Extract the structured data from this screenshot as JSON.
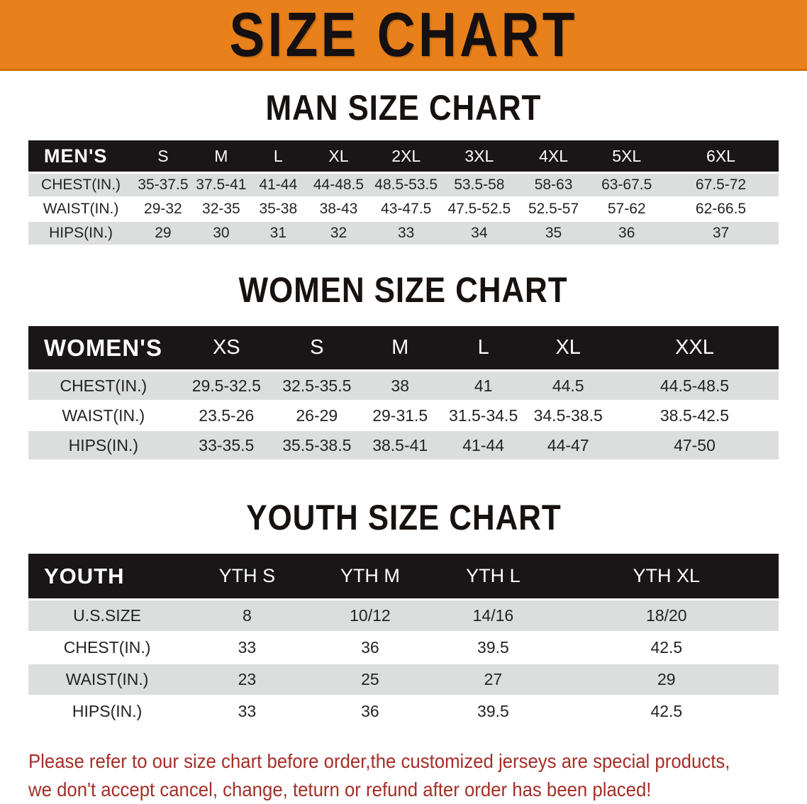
{
  "banner": {
    "title": "SIZE CHART",
    "bg_color": "#E8811B",
    "text_color": "#151011"
  },
  "charts": [
    {
      "id": "men",
      "heading": "MAN SIZE CHART",
      "header": {
        "label": "MEN'S",
        "sizes": [
          "S",
          "M",
          "L",
          "XL",
          "2XL",
          "3XL",
          "4XL",
          "5XL",
          "6XL"
        ]
      },
      "rows": [
        {
          "label": "CHEST(IN.)",
          "values": [
            "35-37.5",
            "37.5-41",
            "41-44",
            "44-48.5",
            "48.5-53.5",
            "53.5-58",
            "58-63",
            "63-67.5",
            "67.5-72"
          ]
        },
        {
          "label": "WAIST(IN.)",
          "values": [
            "29-32",
            "32-35",
            "35-38",
            "38-43",
            "43-47.5",
            "47.5-52.5",
            "52.5-57",
            "57-62",
            "62-66.5"
          ]
        },
        {
          "label": "HIPS(IN.)",
          "values": [
            "29",
            "30",
            "31",
            "32",
            "33",
            "34",
            "35",
            "36",
            "37"
          ]
        }
      ]
    },
    {
      "id": "women",
      "heading": "WOMEN SIZE CHART",
      "header": {
        "label": "WOMEN'S",
        "sizes": [
          "XS",
          "S",
          "M",
          "L",
          "XL",
          "XXL"
        ]
      },
      "rows": [
        {
          "label": "CHEST(IN.)",
          "values": [
            "29.5-32.5",
            "32.5-35.5",
            "38",
            "41",
            "44.5",
            "44.5-48.5"
          ]
        },
        {
          "label": "WAIST(IN.)",
          "values": [
            "23.5-26",
            "26-29",
            "29-31.5",
            "31.5-34.5",
            "34.5-38.5",
            "38.5-42.5"
          ]
        },
        {
          "label": "HIPS(IN.)",
          "values": [
            "33-35.5",
            "35.5-38.5",
            "38.5-41",
            "41-44",
            "44-47",
            "47-50"
          ]
        }
      ]
    },
    {
      "id": "youth",
      "heading": "YOUTH SIZE CHART",
      "header": {
        "label": "YOUTH",
        "sizes": [
          "YTH S",
          "YTH M",
          "YTH L",
          "YTH XL"
        ]
      },
      "rows": [
        {
          "label": "U.S.SIZE",
          "values": [
            "8",
            "10/12",
            "14/16",
            "18/20"
          ]
        },
        {
          "label": "CHEST(IN.)",
          "values": [
            "33",
            "36",
            "39.5",
            "42.5"
          ]
        },
        {
          "label": "WAIST(IN.)",
          "values": [
            "23",
            "25",
            "27",
            "29"
          ]
        },
        {
          "label": "HIPS(IN.)",
          "values": [
            "33",
            "36",
            "39.5",
            "42.5"
          ]
        }
      ]
    }
  ],
  "table_colors": {
    "header_bar": "#1A1516",
    "header_text": "#FFFFFF",
    "stripe_row": "#DCDEDD",
    "plain_row": "#FFFFFF"
  },
  "disclaimer": {
    "line1": "Please refer to our size chart before order,the customized jerseys are special products,",
    "line2": "we don't accept cancel, change, teturn or refund after order has been placed!",
    "color": "#A52E27"
  }
}
